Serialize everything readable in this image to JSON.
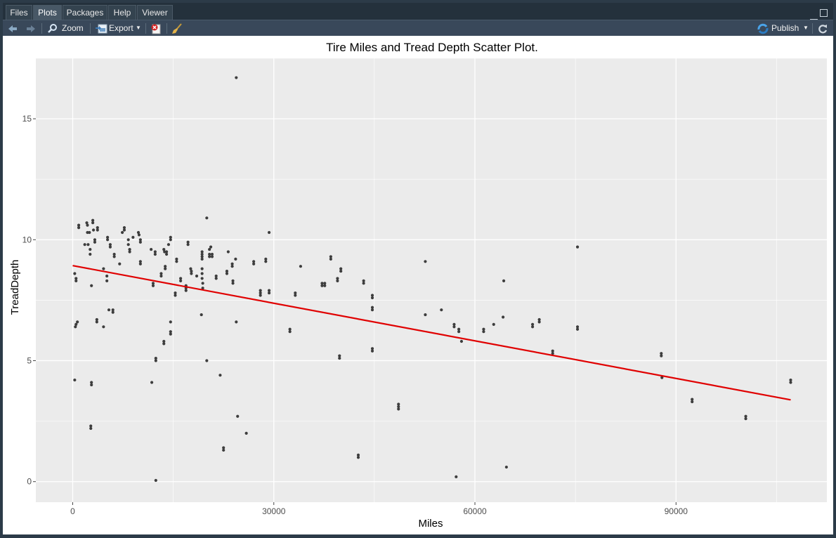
{
  "tabs": [
    "Files",
    "Plots",
    "Packages",
    "Help",
    "Viewer"
  ],
  "active_tab": "Plots",
  "toolbar": {
    "zoom_label": "Zoom",
    "export_label": "Export",
    "publish_label": "Publish"
  },
  "colors": {
    "panel_bg": "#ebebeb",
    "grid": "#ffffff",
    "point": "#3d3d3d",
    "trend_line": "#e00000"
  },
  "chart_data": {
    "type": "scatter",
    "title": "Tire Miles and Tread Depth Scatter Plot.",
    "xlabel": "Miles",
    "ylabel": "TreadDepth",
    "xlim": [
      -5500,
      112500
    ],
    "ylim": [
      -0.85,
      17.5
    ],
    "xticks": [
      0,
      30000,
      60000,
      90000
    ],
    "yticks": [
      0,
      5,
      10,
      15
    ],
    "grid": true,
    "points": [
      [
        300,
        8.6
      ],
      [
        500,
        8.4
      ],
      [
        500,
        8.3
      ],
      [
        300,
        4.2
      ],
      [
        400,
        6.4
      ],
      [
        500,
        6.5
      ],
      [
        700,
        6.6
      ],
      [
        900,
        10.6
      ],
      [
        900,
        10.5
      ],
      [
        1800,
        9.8
      ],
      [
        2100,
        10.7
      ],
      [
        2200,
        10.6
      ],
      [
        2200,
        10.3
      ],
      [
        2500,
        10.3
      ],
      [
        2300,
        9.8
      ],
      [
        2600,
        9.6
      ],
      [
        2600,
        9.4
      ],
      [
        2800,
        8.1
      ],
      [
        2800,
        4.1
      ],
      [
        2800,
        4.0
      ],
      [
        2700,
        2.3
      ],
      [
        2700,
        2.2
      ],
      [
        3000,
        10.8
      ],
      [
        3000,
        10.7
      ],
      [
        3100,
        10.4
      ],
      [
        3300,
        10.0
      ],
      [
        3300,
        9.9
      ],
      [
        3700,
        10.5
      ],
      [
        3700,
        10.4
      ],
      [
        3600,
        6.7
      ],
      [
        3600,
        6.6
      ],
      [
        4600,
        8.8
      ],
      [
        4600,
        6.4
      ],
      [
        5100,
        8.5
      ],
      [
        5100,
        8.3
      ],
      [
        5200,
        10.1
      ],
      [
        5200,
        10.0
      ],
      [
        5400,
        7.1
      ],
      [
        5600,
        9.8
      ],
      [
        5600,
        9.7
      ],
      [
        6000,
        7.1
      ],
      [
        6000,
        7.0
      ],
      [
        6200,
        9.4
      ],
      [
        6200,
        9.3
      ],
      [
        7000,
        9.0
      ],
      [
        7400,
        10.3
      ],
      [
        7700,
        10.5
      ],
      [
        7700,
        10.4
      ],
      [
        8300,
        10.0
      ],
      [
        8300,
        9.8
      ],
      [
        8500,
        9.6
      ],
      [
        8500,
        9.5
      ],
      [
        9000,
        10.1
      ],
      [
        9800,
        10.3
      ],
      [
        9900,
        10.2
      ],
      [
        10100,
        10.0
      ],
      [
        10100,
        9.9
      ],
      [
        10100,
        9.1
      ],
      [
        10100,
        9.0
      ],
      [
        11700,
        9.6
      ],
      [
        11800,
        4.1
      ],
      [
        12000,
        8.2
      ],
      [
        12000,
        8.1
      ],
      [
        12300,
        9.5
      ],
      [
        12300,
        9.4
      ],
      [
        12400,
        5.1
      ],
      [
        12400,
        5.0
      ],
      [
        12400,
        0.05
      ],
      [
        13200,
        8.6
      ],
      [
        13200,
        8.5
      ],
      [
        13600,
        9.6
      ],
      [
        13700,
        9.5
      ],
      [
        13600,
        5.8
      ],
      [
        13600,
        5.7
      ],
      [
        14000,
        9.5
      ],
      [
        14000,
        9.4
      ],
      [
        13800,
        8.9
      ],
      [
        13800,
        8.8
      ],
      [
        14300,
        9.8
      ],
      [
        14600,
        10.1
      ],
      [
        14600,
        10.0
      ],
      [
        14600,
        6.6
      ],
      [
        14600,
        6.2
      ],
      [
        14600,
        6.1
      ],
      [
        15300,
        7.8
      ],
      [
        15300,
        7.7
      ],
      [
        15500,
        9.2
      ],
      [
        15500,
        9.1
      ],
      [
        16100,
        8.4
      ],
      [
        16100,
        8.3
      ],
      [
        16900,
        8.1
      ],
      [
        16900,
        8.0
      ],
      [
        16900,
        7.9
      ],
      [
        17200,
        9.9
      ],
      [
        17200,
        9.8
      ],
      [
        17600,
        8.8
      ],
      [
        17700,
        8.7
      ],
      [
        17700,
        8.6
      ],
      [
        18500,
        8.5
      ],
      [
        19300,
        9.5
      ],
      [
        19300,
        9.4
      ],
      [
        19300,
        9.3
      ],
      [
        19300,
        9.2
      ],
      [
        19300,
        8.8
      ],
      [
        19300,
        8.6
      ],
      [
        19300,
        8.4
      ],
      [
        19400,
        8.2
      ],
      [
        19400,
        8.0
      ],
      [
        19200,
        6.9
      ],
      [
        20000,
        5.0
      ],
      [
        20000,
        10.9
      ],
      [
        20400,
        9.6
      ],
      [
        20400,
        9.4
      ],
      [
        20400,
        9.3
      ],
      [
        20600,
        9.7
      ],
      [
        20800,
        9.4
      ],
      [
        20800,
        9.3
      ],
      [
        21400,
        8.5
      ],
      [
        21400,
        8.4
      ],
      [
        22000,
        4.4
      ],
      [
        22500,
        1.4
      ],
      [
        22500,
        1.3
      ],
      [
        23000,
        8.7
      ],
      [
        23000,
        8.6
      ],
      [
        23200,
        9.5
      ],
      [
        23800,
        9.0
      ],
      [
        23800,
        8.9
      ],
      [
        23900,
        8.3
      ],
      [
        23900,
        8.2
      ],
      [
        24300,
        9.2
      ],
      [
        24400,
        16.7
      ],
      [
        24400,
        6.6
      ],
      [
        24600,
        2.7
      ],
      [
        25900,
        2.0
      ],
      [
        27000,
        9.1
      ],
      [
        27000,
        9.0
      ],
      [
        28000,
        7.9
      ],
      [
        28000,
        7.8
      ],
      [
        28000,
        7.7
      ],
      [
        28800,
        9.2
      ],
      [
        28800,
        9.1
      ],
      [
        29300,
        10.3
      ],
      [
        29300,
        7.9
      ],
      [
        29300,
        7.8
      ],
      [
        32400,
        6.3
      ],
      [
        32400,
        6.2
      ],
      [
        33200,
        7.8
      ],
      [
        33200,
        7.7
      ],
      [
        34000,
        8.9
      ],
      [
        37200,
        8.2
      ],
      [
        37200,
        8.1
      ],
      [
        37600,
        8.2
      ],
      [
        37600,
        8.1
      ],
      [
        38500,
        9.3
      ],
      [
        38500,
        9.2
      ],
      [
        39500,
        8.4
      ],
      [
        39500,
        8.3
      ],
      [
        40000,
        8.8
      ],
      [
        40000,
        8.7
      ],
      [
        39800,
        5.2
      ],
      [
        39800,
        5.1
      ],
      [
        42600,
        1.1
      ],
      [
        42600,
        1.0
      ],
      [
        43400,
        8.3
      ],
      [
        43400,
        8.2
      ],
      [
        44700,
        7.7
      ],
      [
        44700,
        7.6
      ],
      [
        44700,
        7.2
      ],
      [
        44700,
        7.1
      ],
      [
        44700,
        5.5
      ],
      [
        44700,
        5.4
      ],
      [
        48600,
        3.2
      ],
      [
        48600,
        3.1
      ],
      [
        48600,
        3.0
      ],
      [
        52600,
        9.1
      ],
      [
        52600,
        6.9
      ],
      [
        55000,
        7.1
      ],
      [
        56900,
        6.5
      ],
      [
        56900,
        6.4
      ],
      [
        57200,
        0.2
      ],
      [
        57600,
        6.3
      ],
      [
        57600,
        6.2
      ],
      [
        58000,
        5.8
      ],
      [
        61300,
        6.3
      ],
      [
        61300,
        6.2
      ],
      [
        62800,
        6.5
      ],
      [
        64200,
        6.8
      ],
      [
        64300,
        8.3
      ],
      [
        64700,
        0.6
      ],
      [
        68600,
        6.5
      ],
      [
        68600,
        6.4
      ],
      [
        69600,
        6.7
      ],
      [
        69600,
        6.6
      ],
      [
        71600,
        5.4
      ],
      [
        71600,
        5.3
      ],
      [
        75300,
        9.7
      ],
      [
        75300,
        6.4
      ],
      [
        75300,
        6.3
      ],
      [
        87800,
        5.3
      ],
      [
        87800,
        5.2
      ],
      [
        87900,
        4.3
      ],
      [
        92400,
        3.4
      ],
      [
        92400,
        3.3
      ],
      [
        100400,
        2.7
      ],
      [
        100400,
        2.6
      ],
      [
        107100,
        4.2
      ],
      [
        107100,
        4.1
      ]
    ],
    "trend_line": {
      "x": [
        0,
        107100
      ],
      "y": [
        8.93,
        3.38
      ]
    }
  }
}
